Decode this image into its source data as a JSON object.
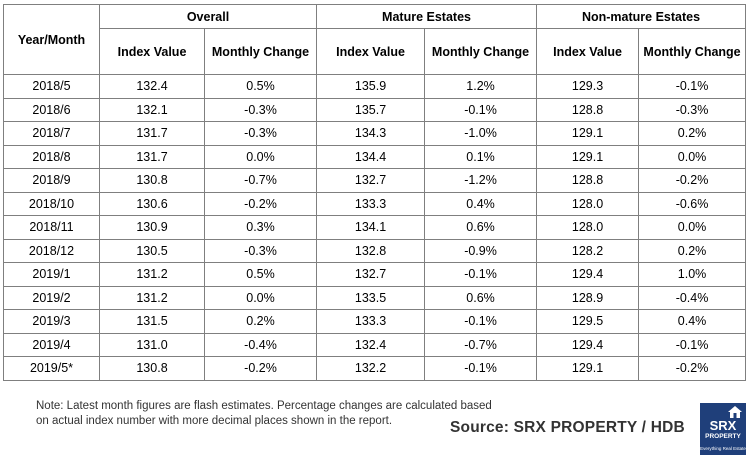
{
  "header": {
    "year_month": "Year/Month",
    "groups": [
      "Overall",
      "Mature Estates",
      "Non-mature Estates"
    ],
    "subheaders": [
      "Index Value",
      "Monthly Change",
      "Index Value",
      "Monthly Change",
      "Index Value",
      "Monthly Change"
    ]
  },
  "rows": [
    [
      "2018/5",
      "132.4",
      "0.5%",
      "135.9",
      "1.2%",
      "129.3",
      "-0.1%"
    ],
    [
      "2018/6",
      "132.1",
      "-0.3%",
      "135.7",
      "-0.1%",
      "128.8",
      "-0.3%"
    ],
    [
      "2018/7",
      "131.7",
      "-0.3%",
      "134.3",
      "-1.0%",
      "129.1",
      "0.2%"
    ],
    [
      "2018/8",
      "131.7",
      "0.0%",
      "134.4",
      "0.1%",
      "129.1",
      "0.0%"
    ],
    [
      "2018/9",
      "130.8",
      "-0.7%",
      "132.7",
      "-1.2%",
      "128.8",
      "-0.2%"
    ],
    [
      "2018/10",
      "130.6",
      "-0.2%",
      "133.3",
      "0.4%",
      "128.0",
      "-0.6%"
    ],
    [
      "2018/11",
      "130.9",
      "0.3%",
      "134.1",
      "0.6%",
      "128.0",
      "0.0%"
    ],
    [
      "2018/12",
      "130.5",
      "-0.3%",
      "132.8",
      "-0.9%",
      "128.2",
      "0.2%"
    ],
    [
      "2019/1",
      "131.2",
      "0.5%",
      "132.7",
      "-0.1%",
      "129.4",
      "1.0%"
    ],
    [
      "2019/2",
      "131.2",
      "0.0%",
      "133.5",
      "0.6%",
      "128.9",
      "-0.4%"
    ],
    [
      "2019/3",
      "131.5",
      "0.2%",
      "133.3",
      "-0.1%",
      "129.5",
      "0.4%"
    ],
    [
      "2019/4",
      "131.0",
      "-0.4%",
      "132.4",
      "-0.7%",
      "129.4",
      "-0.1%"
    ],
    [
      "2019/5*",
      "130.8",
      "-0.2%",
      "132.2",
      "-0.1%",
      "129.1",
      "-0.2%"
    ]
  ],
  "note": "Note: Latest month figures are flash estimates. Percentage changes are calculated based on actual index number with more decimal places shown in the report.",
  "source": "Source:  SRX PROPERTY / HDB",
  "logo": {
    "brand": "SRX",
    "sub": "PROPERTY",
    "tagline": "Everything Real Estate",
    "color": "#1f3f7a"
  }
}
